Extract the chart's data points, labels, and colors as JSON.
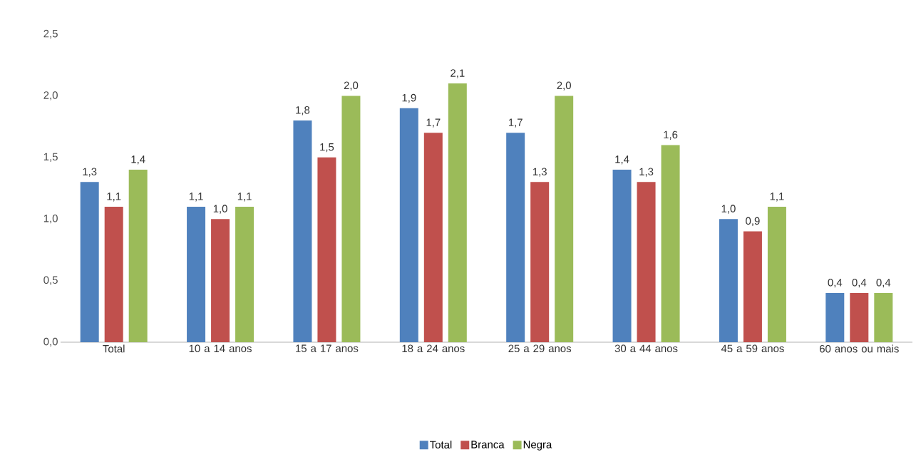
{
  "chart_data": {
    "type": "bar",
    "categories": [
      "Total",
      "10 a 14 anos",
      "15 a 17 anos",
      "18 a 24 anos",
      "25 a 29 anos",
      "30 a 44 anos",
      "45 a 59 anos",
      "60 anos ou mais"
    ],
    "series": [
      {
        "name": "Total",
        "color": "#4f81bd",
        "values": [
          1.3,
          1.1,
          1.8,
          1.9,
          1.7,
          1.4,
          1.0,
          0.4
        ],
        "value_labels": [
          "1,3",
          "1,1",
          "1,8",
          "1,9",
          "1,7",
          "1,4",
          "1,0",
          "0,4"
        ]
      },
      {
        "name": "Branca",
        "color": "#c0504d",
        "values": [
          1.1,
          1.0,
          1.5,
          1.7,
          1.3,
          1.3,
          0.9,
          0.4
        ],
        "value_labels": [
          "1,1",
          "1,0",
          "1,5",
          "1,7",
          "1,3",
          "1,3",
          "0,9",
          "0,4"
        ]
      },
      {
        "name": "Negra",
        "color": "#9bbb59",
        "values": [
          1.4,
          1.1,
          2.0,
          2.1,
          2.0,
          1.6,
          1.1,
          0.4
        ],
        "value_labels": [
          "1,4",
          "1,1",
          "2,0",
          "2,1",
          "2,0",
          "1,6",
          "1,1",
          "0,4"
        ]
      }
    ],
    "ylim": [
      0,
      2.5
    ],
    "yticks": [
      {
        "value": 0,
        "label": "0,0"
      },
      {
        "value": 0.5,
        "label": "0,5"
      },
      {
        "value": 1,
        "label": "1,0"
      },
      {
        "value": 1.5,
        "label": "1,5"
      },
      {
        "value": 2,
        "label": "2,0"
      },
      {
        "value": 2.5,
        "label": "2,5"
      }
    ],
    "grid": false,
    "legend": "bottom"
  }
}
